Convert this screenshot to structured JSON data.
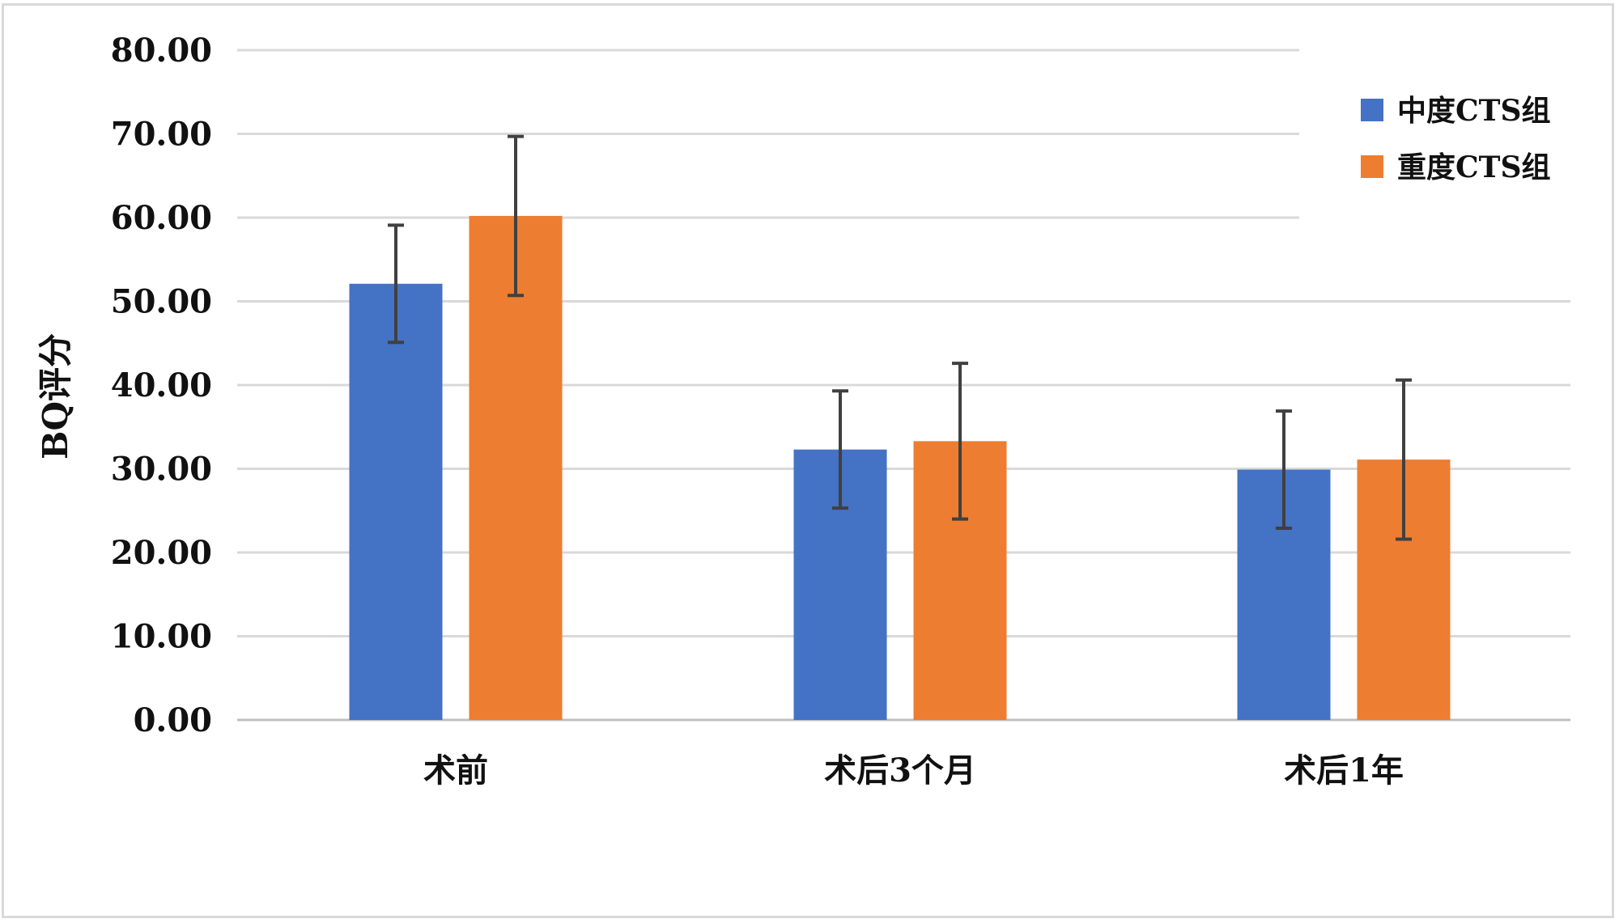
{
  "chart_data": {
    "type": "bar",
    "title": "",
    "xlabel": "",
    "ylabel": "BQ评分",
    "ylim": [
      0,
      80
    ],
    "yticks": [
      "0.00",
      "10.00",
      "20.00",
      "30.00",
      "40.00",
      "50.00",
      "60.00",
      "70.00",
      "80.00"
    ],
    "grid": true,
    "legend_position": "top-right",
    "categories": [
      "术前",
      "术后3个月",
      "术后1年"
    ],
    "series": [
      {
        "name": "中度CTS组",
        "color": "#4472c4",
        "values": [
          52.1,
          32.3,
          29.9
        ],
        "error": [
          7.0,
          7.0,
          7.0
        ]
      },
      {
        "name": "重度CTS组",
        "color": "#ed7d31",
        "values": [
          60.2,
          33.3,
          31.1
        ],
        "error": [
          9.5,
          9.3,
          9.5
        ]
      }
    ]
  }
}
